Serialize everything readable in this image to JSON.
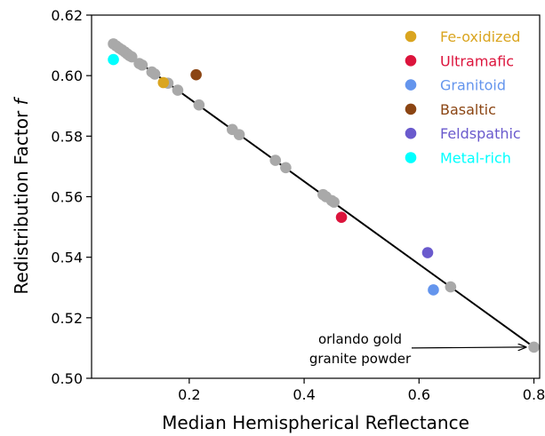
{
  "chart_data": {
    "type": "scatter",
    "xlabel": "Median Hemispherical Reflectance",
    "ylabel_main": "Redistribution Factor ",
    "ylabel_var": "f",
    "xlim": [
      0.03,
      0.81
    ],
    "ylim": [
      0.5,
      0.62
    ],
    "xticks": [
      0.2,
      0.4,
      0.6,
      0.8
    ],
    "xtick_labels": [
      "0.2",
      "0.4",
      "0.6",
      "0.8"
    ],
    "yticks": [
      0.5,
      0.52,
      0.54,
      0.56,
      0.58,
      0.6,
      0.62
    ],
    "ytick_labels": [
      "0.50",
      "0.52",
      "0.54",
      "0.56",
      "0.58",
      "0.60",
      "0.62"
    ],
    "grid": false,
    "legend_position": "top-right",
    "fit_line": {
      "x": [
        0.068,
        0.8
      ],
      "y": [
        0.6105,
        0.5103
      ]
    },
    "series": [
      {
        "name": "",
        "color": "#a9a9a9",
        "x": [
          0.068,
          0.073,
          0.078,
          0.083,
          0.088,
          0.092,
          0.096,
          0.1,
          0.113,
          0.118,
          0.135,
          0.14,
          0.163,
          0.18,
          0.217,
          0.275,
          0.287,
          0.35,
          0.368,
          0.433,
          0.438,
          0.448,
          0.452,
          0.655,
          0.8
        ],
        "y": [
          0.6105,
          0.6098,
          0.6091,
          0.6085,
          0.6078,
          0.6072,
          0.6066,
          0.6062,
          0.604,
          0.6035,
          0.6012,
          0.6005,
          0.5975,
          0.5952,
          0.5903,
          0.5822,
          0.5805,
          0.572,
          0.5696,
          0.5607,
          0.56,
          0.5587,
          0.5582,
          0.5302,
          0.5103
        ]
      },
      {
        "name": "Fe-oxidized",
        "color": "#daa520",
        "x": [
          0.155
        ],
        "y": [
          0.5977
        ]
      },
      {
        "name": "Ultramafic",
        "color": "#dc143c",
        "x": [
          0.465
        ],
        "y": [
          0.5532
        ]
      },
      {
        "name": "Granitoid",
        "color": "#6495ed",
        "x": [
          0.625
        ],
        "y": [
          0.5292
        ]
      },
      {
        "name": "Basaltic",
        "color": "#8b4513",
        "x": [
          0.212
        ],
        "y": [
          0.6003
        ]
      },
      {
        "name": "Feldspathic",
        "color": "#6a5acd",
        "x": [
          0.615
        ],
        "y": [
          0.5415
        ]
      },
      {
        "name": "Metal-rich",
        "color": "#00ffff",
        "x": [
          0.068
        ],
        "y": [
          0.6053
        ]
      }
    ],
    "annotations": [
      {
        "lines": [
          "orlando gold",
          "granite powder"
        ],
        "target_x": 0.795,
        "target_y": 0.5103
      }
    ]
  }
}
